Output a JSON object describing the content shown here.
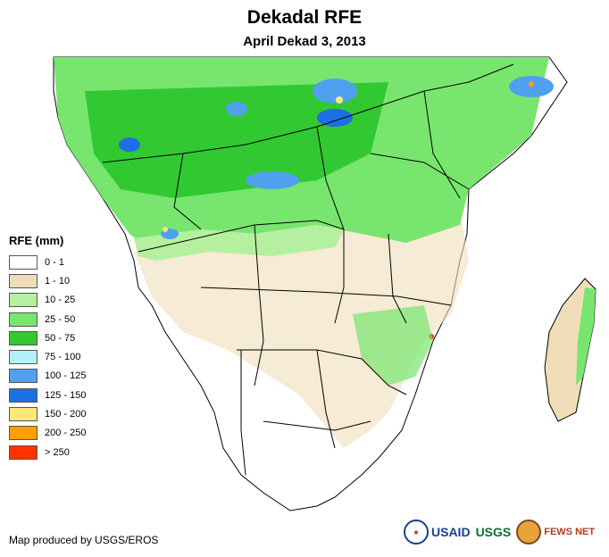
{
  "title": "Dekadal RFE",
  "subtitle": "April Dekad 3, 2013",
  "legend": {
    "title": "RFE (mm)",
    "items": [
      {
        "label": "0 - 1",
        "color": "#ffffff"
      },
      {
        "label": "1 - 10",
        "color": "#f0ddb8"
      },
      {
        "label": "10 - 25",
        "color": "#b4f0a0"
      },
      {
        "label": "25 - 50",
        "color": "#78e66e"
      },
      {
        "label": "50 - 75",
        "color": "#32c832"
      },
      {
        "label": "75 - 100",
        "color": "#b4f0f5"
      },
      {
        "label": "100 - 125",
        "color": "#50a0f0"
      },
      {
        "label": "125 - 150",
        "color": "#1e6ee6"
      },
      {
        "label": "150 - 200",
        "color": "#ffe678"
      },
      {
        "label": "200 - 250",
        "color": "#ffa000"
      },
      {
        "label": "> 250",
        "color": "#ff3200"
      }
    ]
  },
  "credit": "Map produced by USGS/EROS",
  "logos": {
    "usaid": "USAID",
    "usgs": "USGS",
    "fews": "FEWS NET"
  }
}
